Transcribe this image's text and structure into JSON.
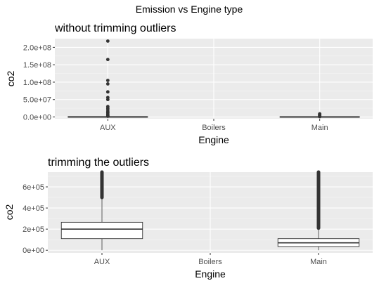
{
  "figure": {
    "title": "Emission vs Engine type"
  },
  "colors": {
    "panel_bg": "#ebebeb",
    "grid_major": "#ffffff",
    "grid_minor": "#f5f5f5",
    "box_fill": "#ffffff",
    "box_line": "#333333",
    "point": "#333333",
    "text": "#000000",
    "tick_text": "#4d4d4d"
  },
  "chart_data": [
    {
      "type": "boxplot",
      "title": "without trimming outliers",
      "xlabel": "Engine",
      "ylabel": "co2",
      "categories": [
        "AUX",
        "Boilers",
        "Main"
      ],
      "ylim": [
        -5000000,
        225000000
      ],
      "yticks": [
        0,
        50000000,
        100000000,
        150000000,
        200000000
      ],
      "ytick_labels": [
        "0.0e+00",
        "5.0e+07",
        "1.0e+08",
        "1.5e+08",
        "2.0e+08"
      ],
      "grid": true,
      "legend": "none",
      "boxes": [
        {
          "category": "AUX",
          "lower_whisker": 0,
          "q1": 110000,
          "median": 200000,
          "q3": 265000,
          "upper_whisker": 500000,
          "outliers": [
            2000000,
            3000000,
            5000000,
            8000000,
            12000000,
            15000000,
            20000000,
            25000000,
            30000000,
            50000000,
            56000000,
            72000000,
            95000000,
            105000000,
            165000000,
            218000000
          ]
        },
        {
          "category": "Boilers",
          "empty": true
        },
        {
          "category": "Main",
          "lower_whisker": 0,
          "q1": 35000,
          "median": 70000,
          "q3": 110000,
          "upper_whisker": 220000,
          "outliers": [
            1000000,
            2000000,
            3000000,
            4000000,
            5000000,
            6000000,
            7000000,
            8000000,
            9000000
          ]
        }
      ]
    },
    {
      "type": "boxplot",
      "title": "trimming the outliers",
      "xlabel": "Engine",
      "ylabel": "co2",
      "categories": [
        "AUX",
        "Boilers",
        "Main"
      ],
      "ylim": [
        -25000,
        740000
      ],
      "yticks": [
        0,
        200000,
        400000,
        600000
      ],
      "ytick_labels": [
        "0e+00",
        "2e+05",
        "4e+05",
        "6e+05"
      ],
      "grid": true,
      "legend": "none",
      "boxes": [
        {
          "category": "AUX",
          "lower_whisker": 0,
          "q1": 110000,
          "median": 200000,
          "q3": 265000,
          "upper_whisker": 500000,
          "outliers_dense_from": 500000
        },
        {
          "category": "Boilers",
          "empty": true
        },
        {
          "category": "Main",
          "lower_whisker": 0,
          "q1": 35000,
          "median": 70000,
          "q3": 110000,
          "upper_whisker": 210000,
          "outliers_dense_from": 210000
        }
      ]
    }
  ]
}
